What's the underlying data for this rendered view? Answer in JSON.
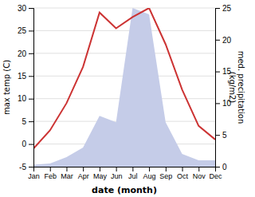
{
  "chart_data": {
    "type": "line",
    "categories": [
      "Jan",
      "Feb",
      "Mar",
      "Apr",
      "May",
      "Jun",
      "Jul",
      "Aug",
      "Sep",
      "Oct",
      "Nov",
      "Dec"
    ],
    "xlabel": "date (month)",
    "ylabel": "max temp (C)",
    "y2label": "med. precipitation\n(kg/m2)",
    "series": [
      {
        "type": "area",
        "axis": "y2",
        "color": "#c5cce8",
        "values": [
          0.3,
          0.5,
          1.5,
          3,
          8,
          7,
          25,
          24,
          7,
          2,
          1,
          1
        ]
      },
      {
        "type": "line",
        "color": "#cc3333",
        "values": [
          -1,
          3,
          9,
          17,
          29,
          25.5,
          28,
          30,
          22,
          12,
          4,
          1
        ]
      }
    ],
    "ylim": [
      -5,
      30
    ],
    "yticks": [
      -5,
      0,
      5,
      10,
      15,
      20,
      25,
      30
    ],
    "y2lim": [
      0,
      25
    ],
    "y2ticks": [
      0,
      5,
      10,
      15,
      20,
      25
    ],
    "grid": true
  }
}
